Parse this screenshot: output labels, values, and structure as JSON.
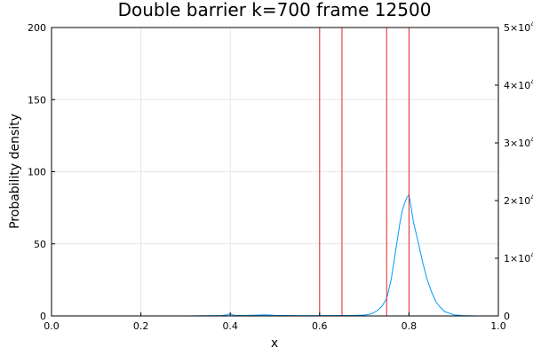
{
  "chart_data": {
    "type": "line",
    "title": "Double barrier k=700 frame 12500",
    "xlabel": "x",
    "ylabel": "Probability density",
    "xlim": [
      0,
      1
    ],
    "ylim": [
      0,
      200
    ],
    "y2lim": [
      0,
      50000
    ],
    "x_ticks": [
      "0.0",
      "0.2",
      "0.4",
      "0.6",
      "0.8",
      "1.0"
    ],
    "x_tick_values": [
      0,
      0.2,
      0.4,
      0.6,
      0.8,
      1.0
    ],
    "y_ticks": [
      "0",
      "50",
      "100",
      "150",
      "200"
    ],
    "y_tick_values": [
      0,
      50,
      100,
      150,
      200
    ],
    "y2_ticks": [
      {
        "value": 0,
        "base": "0",
        "exp": ""
      },
      {
        "value": 10000,
        "base": "1×10",
        "exp": "4"
      },
      {
        "value": 20000,
        "base": "2×10",
        "exp": "4"
      },
      {
        "value": 30000,
        "base": "3×10",
        "exp": "4"
      },
      {
        "value": 40000,
        "base": "4×10",
        "exp": "4"
      },
      {
        "value": 50000,
        "base": "5×10",
        "exp": "4"
      }
    ],
    "grid": true,
    "legend": "none",
    "series": [
      {
        "axis": "left",
        "color": "#009af9",
        "x": [
          0.0,
          0.1,
          0.2,
          0.3,
          0.38,
          0.39,
          0.395,
          0.4,
          0.405,
          0.41,
          0.45,
          0.48,
          0.5,
          0.52,
          0.55,
          0.6,
          0.65,
          0.68,
          0.7,
          0.71,
          0.72,
          0.73,
          0.74,
          0.75,
          0.76,
          0.765,
          0.77,
          0.775,
          0.78,
          0.785,
          0.79,
          0.795,
          0.8,
          0.805,
          0.81,
          0.82,
          0.83,
          0.84,
          0.85,
          0.86,
          0.87,
          0.88,
          0.9,
          0.92,
          0.95,
          1.0
        ],
        "y": [
          0,
          0,
          0,
          0,
          0.3,
          0.6,
          1.0,
          1.5,
          0.8,
          0.3,
          0.5,
          0.8,
          0.4,
          0.3,
          0.2,
          0.2,
          0.3,
          0.4,
          0.6,
          1.0,
          2.0,
          4.0,
          7.0,
          12.0,
          25.0,
          35.0,
          45.0,
          55.0,
          65.0,
          73.0,
          78.0,
          82.0,
          84.0,
          75.0,
          65.0,
          52.0,
          38.0,
          26.0,
          17.0,
          10.0,
          6.0,
          3.0,
          0.8,
          0.2,
          0,
          0
        ]
      },
      {
        "axis": "right",
        "color": "#e8242b",
        "x": [
          0.0,
          0.6,
          0.6,
          0.65,
          0.65,
          0.75,
          0.75,
          0.8,
          0.8,
          1.0
        ],
        "y": [
          0,
          0,
          50000,
          50000,
          0,
          0,
          50000,
          50000,
          0,
          0
        ]
      }
    ]
  }
}
